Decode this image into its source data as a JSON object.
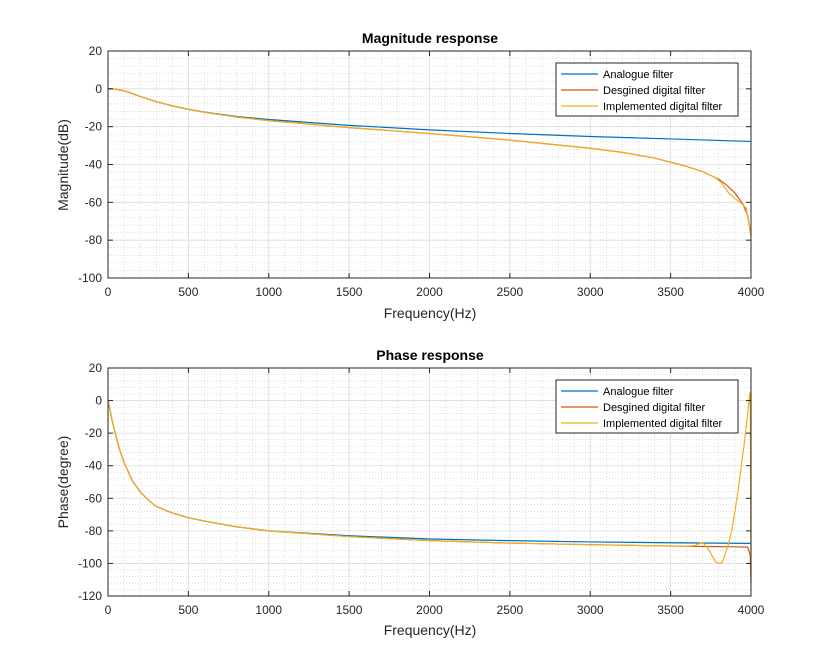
{
  "chart_data": [
    {
      "type": "line",
      "title": "Magnitude response",
      "xlabel": "Frequency(Hz)",
      "ylabel": "Magnitude(dB)",
      "xlim": [
        0,
        4000
      ],
      "ylim": [
        -100,
        20
      ],
      "xticks": [
        0,
        500,
        1000,
        1500,
        2000,
        2500,
        3000,
        3500,
        4000
      ],
      "yticks": [
        -100,
        -80,
        -60,
        -40,
        -20,
        0,
        20
      ],
      "xtick_labels": [
        "0",
        "500",
        "1000",
        "1500",
        "2000",
        "2500",
        "3000",
        "3500",
        "4000"
      ],
      "ytick_labels": [
        "-100",
        "-80",
        "-60",
        "-40",
        "-20",
        "0",
        "20"
      ],
      "grid": true,
      "minor_grid": true,
      "legend_position": "top-right",
      "series": [
        {
          "name": "Analogue filter",
          "color": "#0072BD",
          "x": [
            0,
            20,
            50,
            100,
            150,
            200,
            300,
            400,
            500,
            600,
            800,
            1000,
            1500,
            2000,
            2500,
            3000,
            3500,
            4000
          ],
          "y": [
            0,
            0,
            -0.3,
            -1,
            -2.5,
            -4,
            -6.8,
            -9.0,
            -10.8,
            -12.3,
            -14.6,
            -16.2,
            -19.3,
            -21.7,
            -23.6,
            -25.2,
            -26.5,
            -27.8
          ]
        },
        {
          "name": "Desgined digital filter",
          "color": "#D95319",
          "x": [
            0,
            20,
            50,
            100,
            150,
            200,
            300,
            400,
            500,
            600,
            800,
            1000,
            1500,
            2000,
            2500,
            3000,
            3200,
            3400,
            3600,
            3700,
            3800,
            3850,
            3900,
            3950,
            3980,
            4000
          ],
          "y": [
            0,
            0,
            -0.3,
            -1,
            -2.5,
            -4,
            -6.8,
            -9.0,
            -10.9,
            -12.4,
            -14.9,
            -16.8,
            -20.5,
            -23.6,
            -27.1,
            -31.4,
            -33.6,
            -36.6,
            -41.0,
            -43.8,
            -47.8,
            -51.0,
            -55.0,
            -61.0,
            -67.0,
            -78.0
          ]
        },
        {
          "name": "Implemented digital filter",
          "color": "#EDB120",
          "x": [
            0,
            20,
            50,
            100,
            150,
            200,
            300,
            400,
            500,
            600,
            800,
            1000,
            1500,
            2000,
            2500,
            3000,
            3200,
            3400,
            3600,
            3700,
            3780,
            3820,
            3860,
            3900,
            3940,
            3970,
            4000
          ],
          "y": [
            0,
            0,
            -0.3,
            -1,
            -2.5,
            -4,
            -6.8,
            -9.0,
            -10.9,
            -12.4,
            -14.9,
            -16.8,
            -20.5,
            -23.6,
            -27.1,
            -31.4,
            -33.6,
            -36.6,
            -41.0,
            -43.8,
            -47.0,
            -50.0,
            -55.0,
            -58.0,
            -60.5,
            -63.0,
            -78.0
          ]
        }
      ]
    },
    {
      "type": "line",
      "title": "Phase response",
      "xlabel": "Frequency(Hz)",
      "ylabel": "Phase(degree)",
      "xlim": [
        0,
        4000
      ],
      "ylim": [
        -120,
        20
      ],
      "xticks": [
        0,
        500,
        1000,
        1500,
        2000,
        2500,
        3000,
        3500,
        4000
      ],
      "yticks": [
        -120,
        -100,
        -80,
        -60,
        -40,
        -20,
        0,
        20
      ],
      "xtick_labels": [
        "0",
        "500",
        "1000",
        "1500",
        "2000",
        "2500",
        "3000",
        "3500",
        "4000"
      ],
      "ytick_labels": [
        "-120",
        "-100",
        "-80",
        "-60",
        "-40",
        "-20",
        "0",
        "20"
      ],
      "grid": true,
      "minor_grid": true,
      "legend_position": "top-right",
      "series": [
        {
          "name": "Analogue filter",
          "color": "#0072BD",
          "x": [
            0,
            25,
            50,
            75,
            100,
            150,
            200,
            250,
            300,
            400,
            500,
            600,
            800,
            1000,
            1500,
            2000,
            2500,
            3000,
            3500,
            4000
          ],
          "y": [
            0,
            -12,
            -22,
            -31,
            -38,
            -49,
            -56,
            -61,
            -65,
            -69,
            -72,
            -74,
            -77.5,
            -80,
            -83,
            -85,
            -86,
            -86.8,
            -87.3,
            -87.7
          ]
        },
        {
          "name": "Desgined digital filter",
          "color": "#D95319",
          "x": [
            0,
            25,
            50,
            75,
            100,
            150,
            200,
            250,
            300,
            400,
            500,
            600,
            800,
            1000,
            1500,
            2000,
            2500,
            3000,
            3500,
            3600,
            3700,
            3800,
            3900,
            3950,
            3980,
            3995,
            4000
          ],
          "y": [
            0,
            -12,
            -22,
            -31,
            -38,
            -49,
            -56,
            -61,
            -65,
            -69,
            -72,
            -74,
            -77.5,
            -80,
            -83.5,
            -86,
            -87.5,
            -88.5,
            -89.3,
            -89.5,
            -89.6,
            -89.7,
            -89.8,
            -89.9,
            -90,
            -95,
            -112
          ]
        },
        {
          "name": "Implemented digital filter",
          "color": "#EDB120",
          "x": [
            0,
            25,
            50,
            75,
            100,
            150,
            200,
            250,
            300,
            400,
            500,
            600,
            800,
            1000,
            1500,
            2000,
            2500,
            3000,
            3500,
            3600,
            3650,
            3700,
            3740,
            3780,
            3800,
            3820,
            3840,
            3860,
            3880,
            3900,
            3920,
            3940,
            3960,
            3975,
            3985,
            3990,
            3995,
            4000
          ],
          "y": [
            0,
            -12,
            -22,
            -31,
            -38,
            -49,
            -56,
            -61,
            -65,
            -69,
            -72,
            -74,
            -77.5,
            -80,
            -83.5,
            -86,
            -87.5,
            -88.5,
            -89.3,
            -89.5,
            -89,
            -87,
            -92,
            -99,
            -100,
            -99.5,
            -94,
            -88,
            -80,
            -68,
            -55,
            -40,
            -25,
            -12,
            -3,
            3,
            5,
            -112
          ]
        }
      ]
    }
  ]
}
